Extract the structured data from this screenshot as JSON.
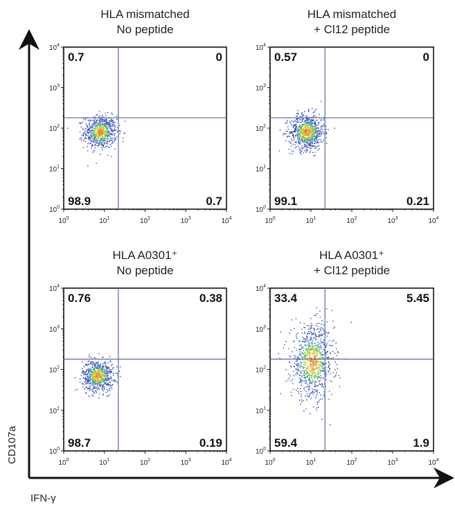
{
  "axes": {
    "x_label": "IFN-γ",
    "y_label": "CD107a"
  },
  "chart_data": [
    {
      "type": "scatter",
      "title": [
        "HLA mismatched",
        "No peptide"
      ],
      "xscale": "log",
      "yscale": "log",
      "xlim": [
        1,
        10000
      ],
      "ylim": [
        1,
        10000
      ],
      "xticks": [
        "10^0",
        "10^1",
        "10^2",
        "10^3",
        "10^4"
      ],
      "yticks": [
        "10^0",
        "10^1",
        "10^2",
        "10^3",
        "10^4"
      ],
      "gate": {
        "x": 22,
        "y": 180
      },
      "quadrants": {
        "upper_left": "0.7",
        "upper_right": "0",
        "lower_left": "98.9",
        "lower_right": "0.7"
      },
      "cluster": {
        "cx": 8,
        "cy": 80,
        "sx": 0.2,
        "sy": 0.2,
        "n": 700
      }
    },
    {
      "type": "scatter",
      "title": [
        "HLA mismatched",
        "+ Cl12 peptide"
      ],
      "xscale": "log",
      "yscale": "log",
      "xlim": [
        1,
        10000
      ],
      "ylim": [
        1,
        10000
      ],
      "xticks": [
        "10^0",
        "10^1",
        "10^2",
        "10^3",
        "10^4"
      ],
      "yticks": [
        "10^0",
        "10^1",
        "10^2",
        "10^3",
        "10^4"
      ],
      "gate": {
        "x": 22,
        "y": 180
      },
      "quadrants": {
        "upper_left": "0.57",
        "upper_right": "0",
        "lower_left": "99.1",
        "lower_right": "0.21"
      },
      "cluster": {
        "cx": 8,
        "cy": 80,
        "sx": 0.21,
        "sy": 0.22,
        "n": 800
      }
    },
    {
      "type": "scatter",
      "title": [
        "HLA A0301⁺",
        "No peptide"
      ],
      "xscale": "log",
      "yscale": "log",
      "xlim": [
        1,
        10000
      ],
      "ylim": [
        1,
        10000
      ],
      "xticks": [
        "10^0",
        "10^1",
        "10^2",
        "10^3",
        "10^4"
      ],
      "yticks": [
        "10^0",
        "10^1",
        "10^2",
        "10^3",
        "10^4"
      ],
      "gate": {
        "x": 22,
        "y": 180
      },
      "quadrants": {
        "upper_left": "0.76",
        "upper_right": "0.38",
        "lower_left": "98.7",
        "lower_right": "0.19"
      },
      "cluster": {
        "cx": 7,
        "cy": 70,
        "sx": 0.19,
        "sy": 0.19,
        "n": 700
      }
    },
    {
      "type": "scatter",
      "title": [
        "HLA A0301⁺",
        "+ Cl12 peptide"
      ],
      "xscale": "log",
      "yscale": "log",
      "xlim": [
        1,
        10000
      ],
      "ylim": [
        1,
        10000
      ],
      "xticks": [
        "10^0",
        "10^1",
        "10^2",
        "10^3",
        "10^4"
      ],
      "yticks": [
        "10^0",
        "10^1",
        "10^2",
        "10^3",
        "10^4"
      ],
      "gate": {
        "x": 22,
        "y": 180
      },
      "quadrants": {
        "upper_left": "33.4",
        "upper_right": "5.45",
        "lower_left": "59.4",
        "lower_right": "1.9"
      },
      "cluster": {
        "cx": 11,
        "cy": 150,
        "sx": 0.26,
        "sy": 0.45,
        "n": 900
      }
    }
  ]
}
